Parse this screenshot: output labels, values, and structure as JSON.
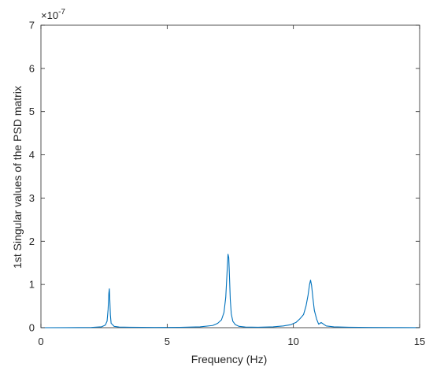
{
  "chart_data": {
    "type": "line",
    "xlabel": "Frequency (Hz)",
    "ylabel": "1st Singular values of the PSD matrix",
    "y_exponent_label": "×10",
    "y_exponent_power": "-7",
    "xlim": [
      0,
      15
    ],
    "ylim": [
      0,
      7
    ],
    "xticks": [
      0,
      5,
      10,
      15
    ],
    "yticks": [
      0,
      1,
      2,
      3,
      4,
      5,
      6,
      7
    ],
    "xtick_labels": [
      "0",
      "5",
      "10",
      "15"
    ],
    "ytick_labels": [
      "0",
      "1",
      "2",
      "3",
      "4",
      "5",
      "6",
      "7"
    ],
    "grid": false,
    "line_color": "#0072BD",
    "axis_color": "#262626",
    "series": [
      {
        "x": [
          0,
          1.0,
          2.0,
          2.4,
          2.55,
          2.62,
          2.66,
          2.69,
          2.71,
          2.73,
          2.75,
          2.78,
          2.82,
          2.9,
          3.1,
          3.5,
          4.5,
          5.5,
          6.3,
          6.8,
          7.0,
          7.15,
          7.25,
          7.32,
          7.37,
          7.41,
          7.44,
          7.47,
          7.5,
          7.54,
          7.6,
          7.7,
          7.85,
          8.1,
          8.6,
          9.2,
          9.6,
          9.9,
          10.1,
          10.25,
          10.4,
          10.5,
          10.58,
          10.64,
          10.68,
          10.72,
          10.77,
          10.83,
          10.92,
          11.0,
          11.1,
          11.3,
          11.6,
          12.2,
          13.0,
          14.0,
          15.0
        ],
        "y": [
          0,
          0.002,
          0.005,
          0.02,
          0.06,
          0.15,
          0.42,
          0.8,
          0.9,
          0.62,
          0.3,
          0.1,
          0.08,
          0.03,
          0.015,
          0.01,
          0.005,
          0.008,
          0.02,
          0.05,
          0.1,
          0.18,
          0.35,
          0.7,
          1.25,
          1.7,
          1.62,
          1.15,
          0.65,
          0.32,
          0.15,
          0.07,
          0.03,
          0.015,
          0.01,
          0.02,
          0.04,
          0.07,
          0.12,
          0.2,
          0.3,
          0.5,
          0.75,
          1.0,
          1.1,
          0.98,
          0.7,
          0.4,
          0.2,
          0.08,
          0.12,
          0.04,
          0.02,
          0.01,
          0.005,
          0.003,
          0.002
        ]
      }
    ]
  }
}
